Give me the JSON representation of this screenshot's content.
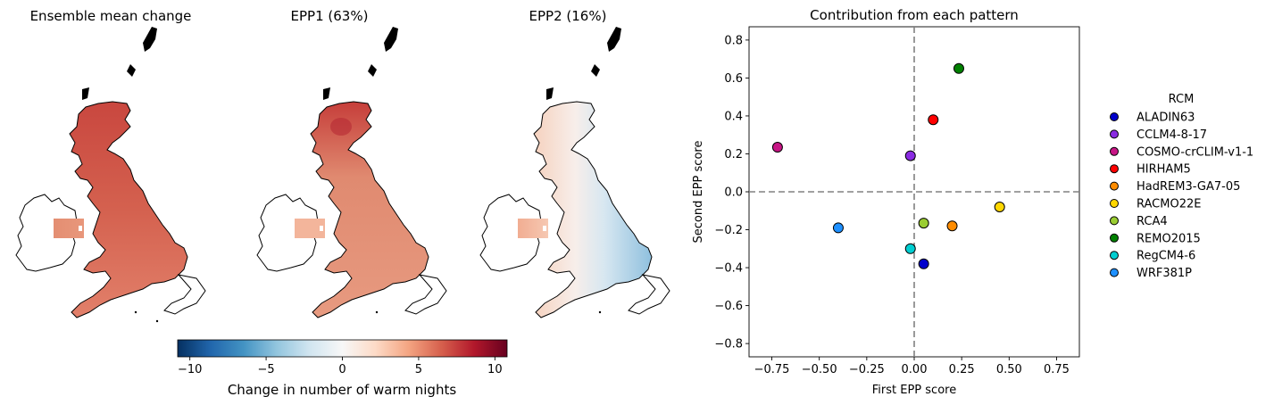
{
  "maps": {
    "panels": [
      {
        "title": "Ensemble mean change"
      },
      {
        "title": "EPP1 (63%)"
      },
      {
        "title": "EPP2 (16%)"
      }
    ],
    "colorbar": {
      "label": "Change in number of warm nights",
      "range": [
        -10.8,
        10.8
      ],
      "ticks": [
        "−10",
        "−5",
        "0",
        "5",
        "10"
      ],
      "tick_values": [
        -10,
        -5,
        0,
        5,
        10
      ],
      "colormap": "RdBu_r"
    }
  },
  "chart_data": {
    "type": "scatter",
    "title": "Contribution from each pattern",
    "xlabel": "First EPP score",
    "ylabel": "Second EPP score",
    "xlim": [
      -0.87,
      0.87
    ],
    "ylim": [
      -0.87,
      0.87
    ],
    "xticks": [
      -0.75,
      -0.5,
      -0.25,
      0,
      0.25,
      0.5,
      0.75
    ],
    "xtick_labels": [
      "−0.75",
      "−0.50",
      "−0.25",
      "0.00",
      "0.25",
      "0.50",
      "0.75"
    ],
    "yticks": [
      -0.8,
      -0.6,
      -0.4,
      -0.2,
      0,
      0.2,
      0.4,
      0.6,
      0.8
    ],
    "ytick_labels": [
      "−0.8",
      "−0.6",
      "−0.4",
      "−0.2",
      "0.0",
      "0.2",
      "0.4",
      "0.6",
      "0.8"
    ],
    "grid": false,
    "reference_lines": {
      "x": 0,
      "y": 0,
      "style": "dashed",
      "color": "#808080"
    },
    "legend": {
      "title": "RCM",
      "placement": "right-outside"
    },
    "points": [
      {
        "name": "ALADIN63",
        "x": 0.05,
        "y": -0.38,
        "color": "#0000cc"
      },
      {
        "name": "CCLM4-8-17",
        "x": -0.02,
        "y": 0.19,
        "color": "#8a2be2"
      },
      {
        "name": "COSMO-crCLIM-v1-1",
        "x": -0.72,
        "y": 0.235,
        "color": "#c71585"
      },
      {
        "name": "HIRHAM5",
        "x": 0.1,
        "y": 0.38,
        "color": "#ff0000"
      },
      {
        "name": "HadREM3-GA7-05",
        "x": 0.2,
        "y": -0.18,
        "color": "#ff8c00"
      },
      {
        "name": "RACMO22E",
        "x": 0.45,
        "y": -0.08,
        "color": "#ffd700"
      },
      {
        "name": "RCA4",
        "x": 0.05,
        "y": -0.165,
        "color": "#9acd32"
      },
      {
        "name": "REMO2015",
        "x": 0.235,
        "y": 0.65,
        "color": "#008000"
      },
      {
        "name": "RegCM4-6",
        "x": -0.02,
        "y": -0.3,
        "color": "#00ced1"
      },
      {
        "name": "WRF381P",
        "x": -0.4,
        "y": -0.19,
        "color": "#1e90ff"
      }
    ]
  }
}
